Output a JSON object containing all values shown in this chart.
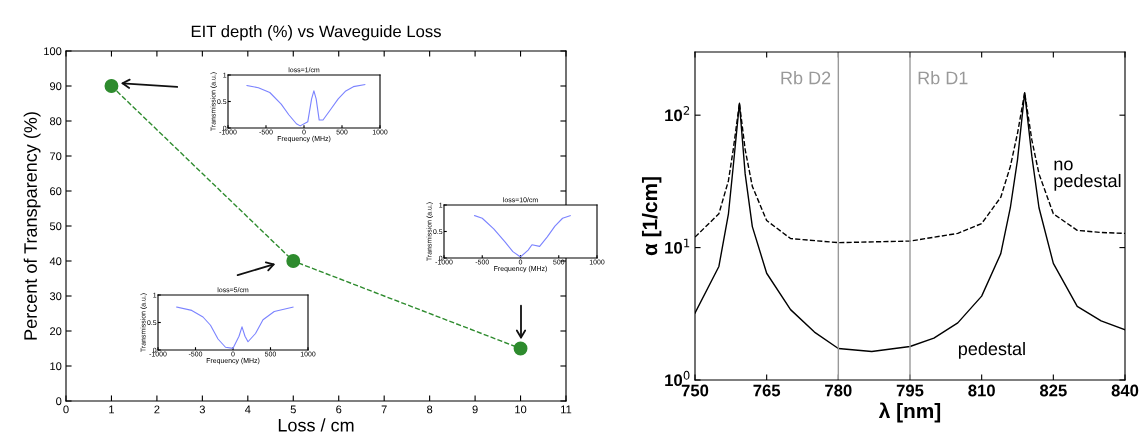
{
  "chart_data": [
    {
      "type": "line",
      "title": "EIT depth (%) vs Waveguide Loss",
      "xlabel": "Loss / cm",
      "ylabel": "Percent of Transparency (%)",
      "x": [
        1,
        5,
        10
      ],
      "series": [
        {
          "color": "#2e8b2e",
          "values": [
            90,
            40,
            15
          ]
        }
      ],
      "xlim": [
        0,
        11
      ],
      "xticks": [
        0,
        1,
        2,
        3,
        4,
        5,
        6,
        7,
        8,
        9,
        10,
        11
      ],
      "ylim": [
        0,
        100
      ],
      "yticks": [
        0,
        10,
        20,
        30,
        40,
        50,
        60,
        70,
        80,
        90,
        100
      ],
      "marker": "circle",
      "line_style": "dashed",
      "grid": false
    },
    {
      "type": "line",
      "title": "loss=1/cm",
      "xlabel": "Frequency (MHz)",
      "ylabel": "Transmission (a.u.)",
      "x": [
        -750,
        -600,
        -450,
        -300,
        -200,
        -100,
        -50,
        50,
        100,
        130,
        160,
        200,
        250,
        350,
        450,
        550,
        650,
        800
      ],
      "series": [
        {
          "color": "#7b83ff",
          "values": [
            0.8,
            0.76,
            0.67,
            0.45,
            0.25,
            0.08,
            0.04,
            0.12,
            0.55,
            0.7,
            0.55,
            0.15,
            0.15,
            0.35,
            0.55,
            0.7,
            0.78,
            0.82
          ]
        }
      ],
      "xlim": [
        -1000,
        1000
      ],
      "xticks": [
        -1000,
        -500,
        0,
        500,
        1000
      ],
      "ylim": [
        0,
        1
      ],
      "yticks": [
        0,
        0.5,
        1
      ],
      "grid": false
    },
    {
      "type": "line",
      "title": "loss=10/cm",
      "xlabel": "Frequency (MHz)",
      "ylabel": "Transmission (a.u.)",
      "x": [
        -600,
        -500,
        -350,
        -200,
        -100,
        0,
        100,
        150,
        250,
        350,
        450,
        550,
        650
      ],
      "series": [
        {
          "color": "#7b83ff",
          "values": [
            0.8,
            0.75,
            0.55,
            0.3,
            0.12,
            0.02,
            0.15,
            0.25,
            0.22,
            0.4,
            0.6,
            0.75,
            0.8
          ]
        }
      ],
      "xlim": [
        -1000,
        1000
      ],
      "xticks": [
        -1000,
        -500,
        0,
        500,
        1000
      ],
      "ylim": [
        0,
        1
      ],
      "yticks": [
        0,
        0.5,
        1
      ],
      "grid": false
    },
    {
      "type": "line",
      "title": "loss=5/cm",
      "xlabel": "Frequency (MHz)",
      "ylabel": "Transmission (a.u.)",
      "x": [
        -750,
        -550,
        -400,
        -300,
        -200,
        -100,
        0,
        80,
        120,
        160,
        200,
        300,
        400,
        550,
        800
      ],
      "series": [
        {
          "color": "#7b83ff",
          "values": [
            0.78,
            0.72,
            0.6,
            0.45,
            0.2,
            0.05,
            0.03,
            0.25,
            0.42,
            0.25,
            0.15,
            0.3,
            0.55,
            0.7,
            0.78
          ]
        }
      ],
      "xlim": [
        -1000,
        1000
      ],
      "xticks": [
        -1000,
        -500,
        0,
        500,
        1000
      ],
      "ylim": [
        0,
        1
      ],
      "yticks": [
        0,
        0.5,
        1
      ],
      "grid": false
    },
    {
      "type": "line",
      "xlabel": "λ [nm]",
      "ylabel": "α [1/cm]",
      "log": true,
      "series": [
        {
          "name": "no\npedestal",
          "color": "#000000",
          "line_style": "dashed",
          "x": [
            750,
            755,
            757,
            758,
            759.3,
            760.5,
            762,
            765,
            770,
            780,
            795,
            805,
            810,
            814,
            816,
            817.5,
            819,
            820.5,
            822,
            825,
            830,
            835,
            840
          ],
          "values": [
            12,
            18,
            32,
            55,
            123,
            55,
            29,
            16,
            11.7,
            10.9,
            11.2,
            12.8,
            15.2,
            24,
            41,
            73,
            148,
            65,
            36,
            18,
            13.5,
            13,
            12.8
          ]
        },
        {
          "name": "pedestal",
          "color": "#000000",
          "line_style": "solid",
          "x": [
            750,
            755,
            757,
            758,
            759.3,
            760.5,
            762,
            765,
            770,
            775,
            780,
            787,
            795,
            800,
            805,
            810,
            814,
            816,
            817.5,
            819,
            820.5,
            822,
            825,
            830,
            835,
            840
          ],
          "values": [
            3.2,
            7.2,
            18,
            41,
            123,
            36,
            14.4,
            6.4,
            3.4,
            2.3,
            1.73,
            1.64,
            1.79,
            2.07,
            2.7,
            4.3,
            9.0,
            20,
            46,
            148,
            49,
            20,
            7.6,
            3.6,
            2.8,
            2.4
          ]
        }
      ],
      "xlim": [
        750,
        840
      ],
      "xticks": [
        750,
        765,
        780,
        795,
        810,
        825,
        840
      ],
      "ylim": [
        1,
        300
      ],
      "yticks": [
        {
          "value": 1,
          "label": "10$^{0}$"
        },
        {
          "value": 10,
          "label": "10$^{1}$"
        },
        {
          "value": 100,
          "label": "10$^{2}$"
        }
      ],
      "ref_lines": [
        {
          "axis": "x",
          "value": 780,
          "label": "Rb D2",
          "color": "#999999"
        },
        {
          "axis": "x",
          "value": 795,
          "label": "Rb D1",
          "color": "#999999"
        }
      ],
      "grid": false
    }
  ]
}
